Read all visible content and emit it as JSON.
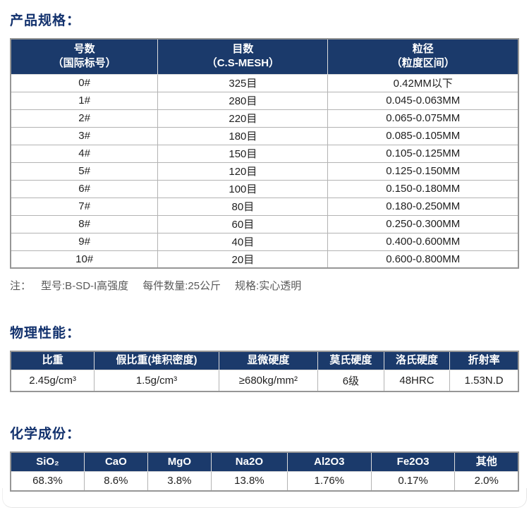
{
  "colors": {
    "header_bg": "#1b3a6b",
    "title_text": "#12316d",
    "note_text": "#595959",
    "outer_border": "#969696"
  },
  "spec_section": {
    "title": "产品规格：",
    "table": {
      "headers": [
        {
          "line1": "号数",
          "line2": "（国际标号）"
        },
        {
          "line1": "目数",
          "line2": "（C.S-MESH）"
        },
        {
          "line1": "粒径",
          "line2": "（粒度区间）"
        }
      ],
      "rows": [
        {
          "no": "0#",
          "mesh": "325目",
          "size": "0.42MM以下"
        },
        {
          "no": "1#",
          "mesh": "280目",
          "size": "0.045-0.063MM"
        },
        {
          "no": "2#",
          "mesh": "220目",
          "size": "0.065-0.075MM"
        },
        {
          "no": "3#",
          "mesh": "180目",
          "size": "0.085-0.105MM"
        },
        {
          "no": "4#",
          "mesh": "150目",
          "size": "0.105-0.125MM"
        },
        {
          "no": "5#",
          "mesh": "120目",
          "size": "0.125-0.150MM"
        },
        {
          "no": "6#",
          "mesh": "100目",
          "size": "0.150-0.180MM"
        },
        {
          "no": "7#",
          "mesh": "80目",
          "size": "0.180-0.250MM"
        },
        {
          "no": "8#",
          "mesh": "60目",
          "size": "0.250-0.300MM"
        },
        {
          "no": "9#",
          "mesh": "40目",
          "size": "0.400-0.600MM"
        },
        {
          "no": "10#",
          "mesh": "20目",
          "size": "0.600-0.800MM"
        }
      ]
    },
    "note": {
      "label": "注：",
      "items": [
        "型号:B-SD-I高强度",
        "每件数量:25公斤",
        "规格:实心透明"
      ]
    }
  },
  "physical_section": {
    "title": "物理性能：",
    "table": {
      "headers": [
        "比重",
        "假比重(堆积密度)",
        "显微硬度",
        "莫氏硬度",
        "洛氏硬度",
        "折射率"
      ],
      "values": [
        "2.45g/cm³",
        "1.5g/cm³",
        "≥680kg/mm²",
        "6级",
        "48HRC",
        "1.53N.D"
      ]
    }
  },
  "chemical_section": {
    "title": "化学成份：",
    "table": {
      "headers": [
        "SiO₂",
        "CaO",
        "MgO",
        "Na2O",
        "Al2O3",
        "Fe2O3",
        "其他"
      ],
      "values": [
        "68.3%",
        "8.6%",
        "3.8%",
        "13.8%",
        "1.76%",
        "0.17%",
        "2.0%"
      ]
    }
  }
}
